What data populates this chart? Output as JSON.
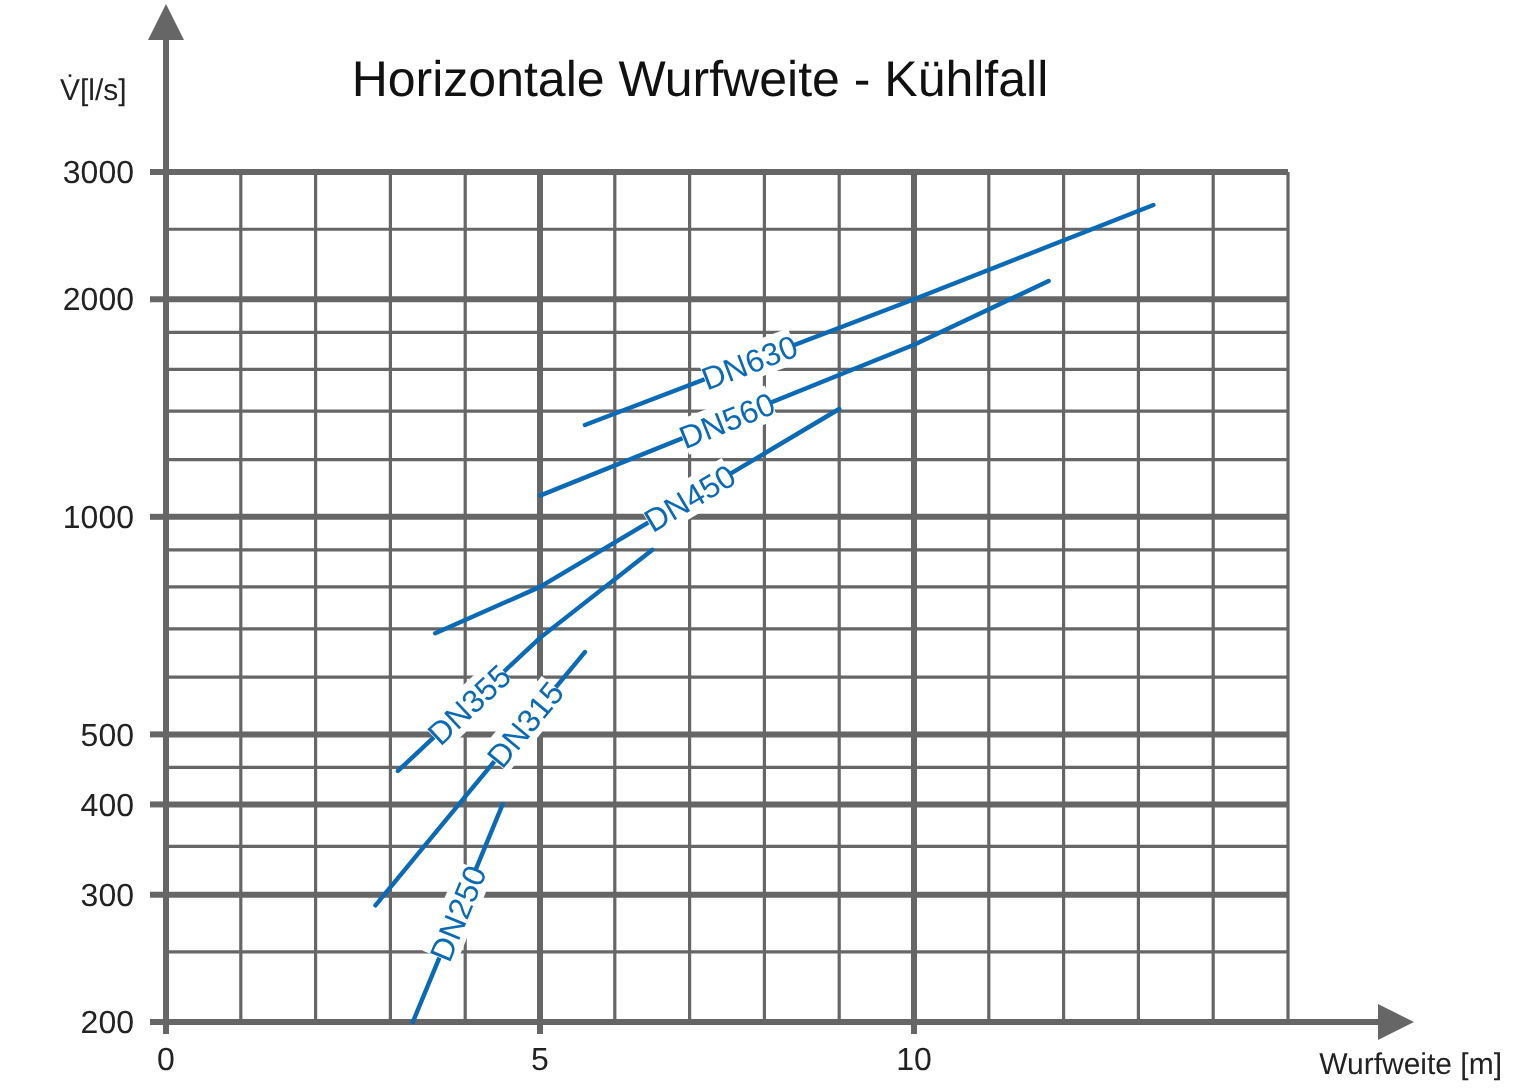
{
  "chart_data": {
    "type": "line",
    "title": "Horizontale Wurfweite - Kühlfall",
    "xlabel": "Wurfweite [m]",
    "ylabel": "V̇[l/s]",
    "log": "y",
    "grid": true,
    "marker": "none",
    "line_style": "solid",
    "xlim": [
      0,
      15
    ],
    "xticks": [
      0,
      {
        "value": 1,
        "label": null
      },
      {
        "value": 2,
        "label": null
      },
      {
        "value": 3,
        "label": null
      },
      {
        "value": 4,
        "label": null
      },
      5,
      {
        "value": 6,
        "label": null
      },
      {
        "value": 7,
        "label": null
      },
      {
        "value": 8,
        "label": null
      },
      {
        "value": 9,
        "label": null
      },
      10,
      {
        "value": 11,
        "label": null
      },
      {
        "value": 12,
        "label": null
      },
      {
        "value": 13,
        "label": null
      },
      {
        "value": 14,
        "label": null
      },
      {
        "value": 15,
        "label": null
      }
    ],
    "ylim": [
      200,
      3000
    ],
    "yticks": [
      200,
      {
        "value": 250,
        "label": null
      },
      300,
      {
        "value": 350,
        "label": null
      },
      400,
      {
        "value": 450,
        "label": null
      },
      500,
      {
        "value": 600,
        "label": null
      },
      {
        "value": 700,
        "label": null
      },
      {
        "value": 800,
        "label": null
      },
      {
        "value": 900,
        "label": null
      },
      1000,
      {
        "value": 1200,
        "label": null
      },
      {
        "value": 1400,
        "label": null
      },
      {
        "value": 1600,
        "label": null
      },
      {
        "value": 1800,
        "label": null
      },
      2000,
      {
        "value": 2500,
        "label": null
      },
      3000
    ],
    "series": [
      {
        "name": "DN630",
        "color": "#0a6ab6",
        "x": [
          5.6,
          10,
          13.2
        ],
        "values": [
          1340,
          2000,
          2700
        ]
      },
      {
        "name": "DN560",
        "color": "#0a6ab6",
        "x": [
          5,
          10,
          11.8
        ],
        "values": [
          1070,
          1730,
          2120
        ]
      },
      {
        "name": "DN450",
        "color": "#0a6ab6",
        "x": [
          3.6,
          5,
          9
        ],
        "values": [
          690,
          800,
          1410
        ]
      },
      {
        "name": "DN355",
        "color": "#0a6ab6",
        "x": [
          3.1,
          5,
          6.5
        ],
        "values": [
          445,
          680,
          900
        ]
      },
      {
        "name": "DN315",
        "color": "#0a6ab6",
        "x": [
          2.8,
          4,
          5.6
        ],
        "values": [
          290,
          410,
          650
        ]
      },
      {
        "name": "DN250",
        "color": "#0a6ab6",
        "x": [
          3.3,
          4.5
        ],
        "values": [
          200,
          400
        ]
      }
    ]
  }
}
